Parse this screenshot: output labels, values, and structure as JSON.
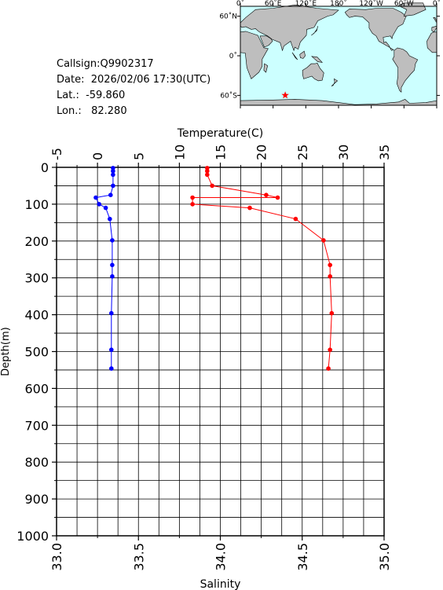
{
  "header": {
    "callsign": "Callsign:Q9902317",
    "date": "Date:  2026/02/06 17:30(UTC)",
    "lat": "Lat.:  -59.860",
    "lon": "Lon.:   82.280"
  },
  "map": {
    "lon_labels": [
      "0˚",
      "60˚E",
      "120˚E",
      "180˚",
      "120˚W",
      "60˚W",
      "0˚"
    ],
    "lat_labels": [
      "60˚N",
      "0˚",
      "60˚S"
    ],
    "station": {
      "lon": 82.28,
      "lat": -59.86,
      "marker": "star"
    },
    "colors": {
      "ocean": "#ccffff",
      "land": "#bebebe",
      "marker": "#ff0000"
    }
  },
  "chart_data": {
    "type": "line",
    "xlabel_top": "Temperature(C)",
    "xlabel_bottom": "Salinity",
    "ylabel": "Depth(m)",
    "temperature_ticks": [
      "-5",
      "0",
      "5",
      "10",
      "15",
      "20",
      "25",
      "30",
      "35"
    ],
    "salinity_ticks": [
      "33.0",
      "33.5",
      "34.0",
      "34.5",
      "35.0"
    ],
    "depth_ticks": [
      "0",
      "100",
      "200",
      "300",
      "400",
      "500",
      "600",
      "700",
      "800",
      "900",
      "1000"
    ],
    "xlim_temperature": [
      -5,
      35
    ],
    "xlim_salinity": [
      33.0,
      35.0
    ],
    "ylim_depth": [
      0,
      1000
    ],
    "y_inverted": true,
    "grid": true,
    "series": [
      {
        "color": "#0000ff",
        "axis": "temperature",
        "points": [
          [
            1.9,
            2
          ],
          [
            1.9,
            10
          ],
          [
            1.9,
            20
          ],
          [
            1.9,
            50
          ],
          [
            1.6,
            75
          ],
          [
            -0.2,
            82
          ],
          [
            0.2,
            100
          ],
          [
            1.0,
            110
          ],
          [
            1.5,
            140
          ],
          [
            1.8,
            198
          ],
          [
            1.8,
            265
          ],
          [
            1.8,
            296
          ],
          [
            1.7,
            396
          ],
          [
            1.7,
            495
          ],
          [
            1.7,
            546
          ]
        ]
      },
      {
        "color": "#ff0000",
        "axis": "salinity",
        "points": [
          [
            33.92,
            2
          ],
          [
            33.92,
            10
          ],
          [
            33.92,
            20
          ],
          [
            33.95,
            50
          ],
          [
            34.28,
            75
          ],
          [
            34.35,
            82
          ],
          [
            33.83,
            82
          ],
          [
            33.83,
            100
          ],
          [
            34.18,
            110
          ],
          [
            34.46,
            140
          ],
          [
            34.63,
            198
          ],
          [
            34.67,
            265
          ],
          [
            34.67,
            296
          ],
          [
            34.68,
            396
          ],
          [
            34.67,
            495
          ],
          [
            34.66,
            546
          ]
        ]
      }
    ]
  }
}
